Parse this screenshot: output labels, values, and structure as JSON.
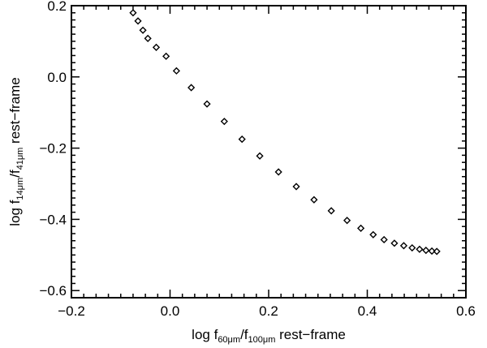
{
  "chart_data": {
    "type": "scatter",
    "xlabel": {
      "prefix": "log f",
      "num_sub": "60μm",
      "slash": "/f",
      "den_sub": "100μm",
      "suffix": " rest−frame"
    },
    "ylabel": {
      "prefix": "log f",
      "num_sub": "14μm",
      "slash": "/f",
      "den_sub": "41μm",
      "suffix": " rest−frame"
    },
    "xlim": [
      -0.2,
      0.6
    ],
    "ylim": [
      -0.62,
      0.2
    ],
    "x_ticks": [
      -0.2,
      0.0,
      0.2,
      0.4,
      0.6
    ],
    "x_tick_labels": [
      "−0.2",
      "0.0",
      "0.2",
      "0.4",
      "0.6"
    ],
    "y_ticks": [
      -0.6,
      -0.4,
      -0.2,
      0.0,
      0.2
    ],
    "y_tick_labels": [
      "−0.6",
      "−0.4",
      "−0.2",
      "0.0",
      "0.2"
    ],
    "marker": "diamond",
    "grid": false,
    "x": [
      -0.075,
      -0.065,
      -0.055,
      -0.045,
      -0.028,
      -0.008,
      0.013,
      0.043,
      0.075,
      0.11,
      0.146,
      0.182,
      0.22,
      0.256,
      0.292,
      0.327,
      0.359,
      0.387,
      0.412,
      0.434,
      0.455,
      0.474,
      0.491,
      0.506,
      0.519,
      0.531,
      0.541
    ],
    "y": [
      0.18,
      0.157,
      0.131,
      0.108,
      0.083,
      0.058,
      0.017,
      -0.03,
      -0.076,
      -0.125,
      -0.175,
      -0.222,
      -0.267,
      -0.308,
      -0.345,
      -0.376,
      -0.403,
      -0.425,
      -0.443,
      -0.457,
      -0.467,
      -0.474,
      -0.48,
      -0.484,
      -0.487,
      -0.489,
      -0.49
    ]
  }
}
